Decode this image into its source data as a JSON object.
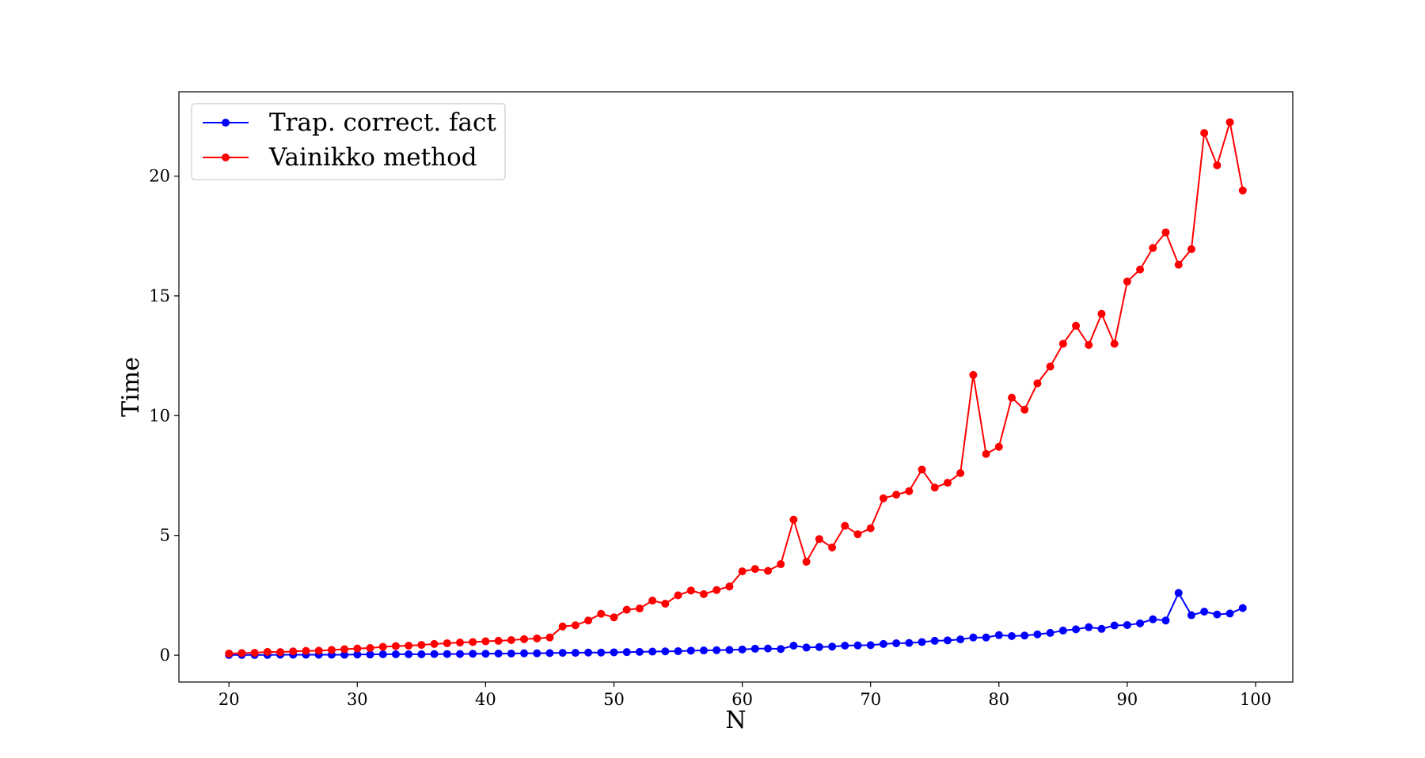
{
  "chart_data": {
    "type": "line",
    "title": "",
    "xlabel": "N",
    "ylabel": "Time",
    "xlim": [
      16.1,
      102.9
    ],
    "ylim": [
      -1.12,
      23.52
    ],
    "xticks": [
      20,
      30,
      40,
      50,
      60,
      70,
      80,
      90,
      100
    ],
    "yticks": [
      0,
      5,
      10,
      15,
      20
    ],
    "grid": false,
    "legend_position": "top-left",
    "x": [
      20,
      21,
      22,
      23,
      24,
      25,
      26,
      27,
      28,
      29,
      30,
      31,
      32,
      33,
      34,
      35,
      36,
      37,
      38,
      39,
      40,
      41,
      42,
      43,
      44,
      45,
      46,
      47,
      48,
      49,
      50,
      51,
      52,
      53,
      54,
      55,
      56,
      57,
      58,
      59,
      60,
      61,
      62,
      63,
      64,
      65,
      66,
      67,
      68,
      69,
      70,
      71,
      72,
      73,
      74,
      75,
      76,
      77,
      78,
      79,
      80,
      81,
      82,
      83,
      84,
      85,
      86,
      87,
      88,
      89,
      90,
      91,
      92,
      93,
      94,
      95,
      96,
      97,
      98,
      99
    ],
    "series": [
      {
        "name": "Trap. correct. fact",
        "color": "#0000ff",
        "values": [
          0.01,
          0.01,
          0.01,
          0.01,
          0.02,
          0.02,
          0.02,
          0.02,
          0.02,
          0.02,
          0.03,
          0.03,
          0.04,
          0.04,
          0.04,
          0.04,
          0.05,
          0.05,
          0.05,
          0.06,
          0.06,
          0.07,
          0.07,
          0.08,
          0.08,
          0.09,
          0.1,
          0.1,
          0.11,
          0.11,
          0.12,
          0.13,
          0.14,
          0.15,
          0.16,
          0.17,
          0.19,
          0.2,
          0.21,
          0.22,
          0.24,
          0.27,
          0.28,
          0.26,
          0.4,
          0.32,
          0.34,
          0.36,
          0.4,
          0.41,
          0.42,
          0.47,
          0.5,
          0.51,
          0.55,
          0.6,
          0.62,
          0.66,
          0.74,
          0.74,
          0.84,
          0.8,
          0.82,
          0.87,
          0.93,
          1.03,
          1.08,
          1.17,
          1.1,
          1.24,
          1.26,
          1.33,
          1.5,
          1.45,
          2.6,
          1.67,
          1.82,
          1.7,
          1.74,
          1.97
        ]
      },
      {
        "name": "Vainikko method",
        "color": "#ff0000",
        "values": [
          0.07,
          0.09,
          0.1,
          0.14,
          0.13,
          0.16,
          0.18,
          0.19,
          0.22,
          0.25,
          0.28,
          0.3,
          0.35,
          0.38,
          0.4,
          0.43,
          0.47,
          0.5,
          0.53,
          0.55,
          0.58,
          0.6,
          0.63,
          0.67,
          0.7,
          0.74,
          1.2,
          1.25,
          1.45,
          1.73,
          1.58,
          1.9,
          1.95,
          2.28,
          2.15,
          2.5,
          2.7,
          2.55,
          2.72,
          2.87,
          3.5,
          3.6,
          3.52,
          3.8,
          5.66,
          3.9,
          4.85,
          4.5,
          5.4,
          5.05,
          5.3,
          6.55,
          6.7,
          6.85,
          7.75,
          7.0,
          7.2,
          7.6,
          11.7,
          8.4,
          8.7,
          10.75,
          10.25,
          11.35,
          12.05,
          13.0,
          13.75,
          12.95,
          14.25,
          13.0,
          15.6,
          16.1,
          17.0,
          17.65,
          16.3,
          16.95,
          21.8,
          20.45,
          22.25,
          19.4
        ]
      }
    ]
  }
}
